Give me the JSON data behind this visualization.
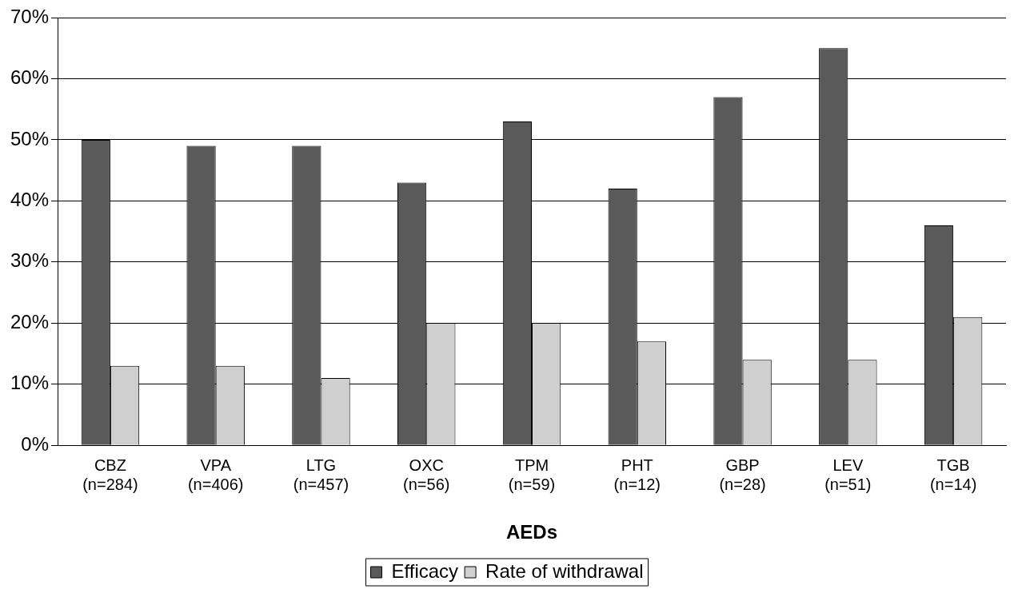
{
  "chart_data": {
    "type": "bar",
    "xlabel": "AEDs",
    "categories": [
      "CBZ (n=284)",
      "VPA (n=406)",
      "LTG (n=457)",
      "OXC (n=56)",
      "TPM (n=59)",
      "PHT (n=12)",
      "GBP (n=28)",
      "LEV (n=51)",
      "TGB (n=14)"
    ],
    "series": [
      {
        "name": "Efficacy",
        "color": "#5a5a5a",
        "values": [
          50,
          49,
          49,
          43,
          53,
          42,
          57,
          65,
          36
        ]
      },
      {
        "name": "Rate of withdrawal",
        "color": "#cfcfcf",
        "values": [
          13,
          13,
          11,
          20,
          20,
          17,
          14,
          14,
          21
        ]
      }
    ],
    "ylim": [
      0,
      70
    ],
    "yticks": [
      {
        "value": 0,
        "label": "0%"
      },
      {
        "value": 10,
        "label": "10%"
      },
      {
        "value": 20,
        "label": "20%"
      },
      {
        "value": 30,
        "label": "30%"
      },
      {
        "value": 40,
        "label": "40%"
      },
      {
        "value": 50,
        "label": "50%"
      },
      {
        "value": 60,
        "label": "60%"
      },
      {
        "value": 70,
        "label": "70%"
      }
    ],
    "grid": "y",
    "legend": "bottom"
  }
}
